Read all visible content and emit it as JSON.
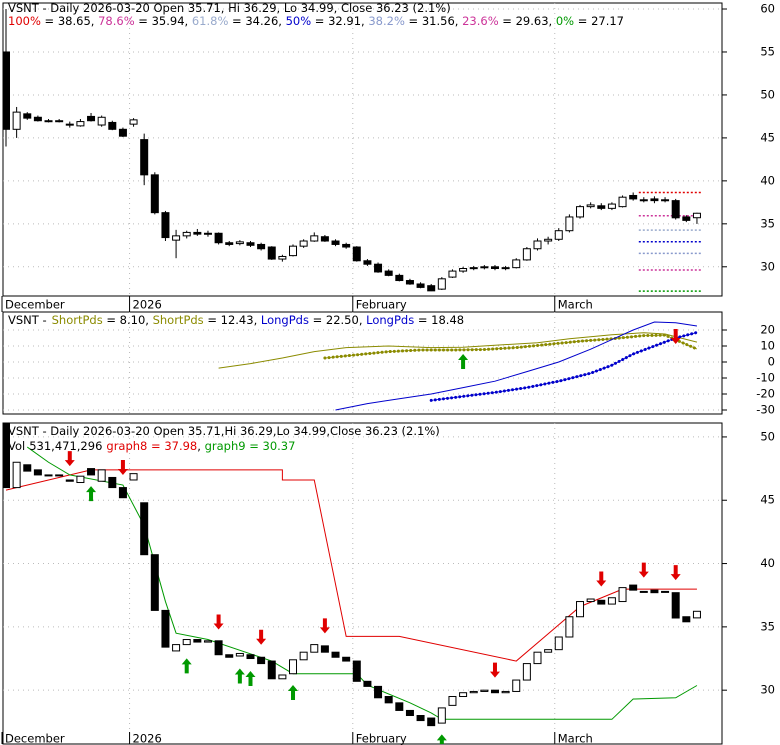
{
  "chart_data": [
    {
      "type": "candlestick",
      "title": "VSNT - Daily 2026-03-20 Open 35.71, Hi 36.29, Lo 34.99, Close 36.23 (2.1%)",
      "open": [
        55,
        46,
        47.8,
        47.4,
        47,
        47,
        46.6,
        46.4,
        47.5,
        46.5,
        46.8,
        46,
        46.6,
        44.8,
        40.7,
        36.3,
        33.1,
        33.6,
        34,
        33.8,
        33.9,
        32.8,
        32.7,
        32.8,
        32.6,
        32.3,
        30.9,
        31.3,
        32.4,
        33,
        33.5,
        33,
        32.6,
        32.3,
        30.7,
        30.3,
        29.5,
        29,
        28.4,
        28,
        27.8,
        27.4,
        28.8,
        29.5,
        29.8,
        29.9,
        30,
        29.8,
        29.9,
        30.8,
        32.1,
        33,
        33.2,
        34.2,
        35.8,
        37,
        37.1,
        36.8,
        37,
        38.3,
        37.8,
        37.9,
        37.8,
        37.7,
        35.8,
        35.71
      ],
      "high": [
        60,
        48.6,
        48,
        47.6,
        47.2,
        47.2,
        46.9,
        47.2,
        47.9,
        47.6,
        47,
        46.2,
        47.3,
        45.5,
        41,
        36.5,
        34.3,
        34.2,
        34.4,
        34.2,
        34,
        33,
        33.1,
        33,
        32.8,
        32.4,
        31.4,
        32.6,
        33.2,
        34,
        33.7,
        33.2,
        32.8,
        32.4,
        30.9,
        30.5,
        29.7,
        29.2,
        28.6,
        28.2,
        28,
        28.8,
        29.7,
        30,
        30.1,
        30.2,
        30.2,
        30.1,
        31,
        32.3,
        33.3,
        33.5,
        34.5,
        36.1,
        37.2,
        37.5,
        37.4,
        37.5,
        38.3,
        38.65,
        38.1,
        38.2,
        38.1,
        37.9,
        36,
        36.29
      ],
      "low": [
        44,
        45,
        47.1,
        46.9,
        46.8,
        46.8,
        46.2,
        46.3,
        46.9,
        46.3,
        45.9,
        45.1,
        46.3,
        39.5,
        36.1,
        33,
        31,
        33.3,
        33.6,
        33.5,
        32.6,
        32.4,
        32.5,
        32.3,
        31.9,
        30.8,
        30.6,
        31.2,
        32.2,
        32.9,
        32.9,
        32.4,
        32.1,
        30.6,
        30.1,
        29.3,
        28.9,
        28.3,
        27.9,
        27.5,
        27.17,
        27.3,
        28.7,
        29.3,
        29.6,
        29.7,
        29.6,
        29.6,
        29.8,
        30.7,
        31.9,
        32.6,
        33,
        34,
        35.6,
        36.8,
        36.6,
        36.6,
        36.9,
        37.7,
        37.5,
        37.4,
        37.5,
        35.5,
        35.2,
        34.99
      ],
      "close": [
        46,
        48,
        47.3,
        47,
        47,
        47,
        46.5,
        46.9,
        47,
        47.4,
        46,
        45.2,
        47.1,
        40.7,
        36.3,
        33.4,
        33.6,
        34,
        33.8,
        33.9,
        32.8,
        32.6,
        32.9,
        32.5,
        32.1,
        30.9,
        31.2,
        32.4,
        33,
        33.6,
        33,
        32.6,
        32.3,
        30.7,
        30.3,
        29.4,
        29,
        28.4,
        28,
        27.6,
        27.2,
        28.6,
        29.5,
        29.8,
        29.9,
        30,
        29.8,
        29.9,
        30.8,
        32.1,
        33,
        33.2,
        34.2,
        35.8,
        37,
        37.2,
        36.8,
        37.3,
        38.1,
        37.9,
        37.8,
        37.7,
        37.8,
        35.7,
        35.4,
        36.23
      ],
      "xticks": [
        {
          "value": 0,
          "label": "December"
        },
        {
          "value": 12,
          "label": "2026"
        },
        {
          "value": 33,
          "label": "February"
        },
        {
          "value": 52,
          "label": "March"
        }
      ],
      "ylim": [
        26.6,
        60.7
      ],
      "yticks": [
        30,
        35,
        40,
        45,
        50,
        55,
        60
      ],
      "grid": true,
      "legend_separator": " = ",
      "legend_item_separator": ", ",
      "fib_levels": [
        {
          "name": "100%",
          "value": 38.65,
          "color": "#e00000"
        },
        {
          "name": "78.6%",
          "value": 35.94,
          "color": "#cc3399"
        },
        {
          "name": "61.8%",
          "value": 34.26,
          "color": "#99aacc"
        },
        {
          "name": "50%",
          "value": 32.91,
          "color": "#0000cc"
        },
        {
          "name": "38.2%",
          "value": 31.56,
          "color": "#8899cc"
        },
        {
          "name": "23.6%",
          "value": 29.63,
          "color": "#cc3399"
        },
        {
          "name": "0%",
          "value": 27.17,
          "color": "#009900"
        }
      ]
    },
    {
      "type": "line",
      "title": "VSNT -",
      "ylim": [
        -32.5,
        31.25
      ],
      "yticks": [
        20,
        10,
        0,
        -10,
        -20,
        -30
      ],
      "legend_separator": " = ",
      "legend_item_separator": ", ",
      "series": [
        {
          "name": "ShortPds",
          "color": "#8b8b00",
          "style": "dotted",
          "legend_label": "8.10",
          "x": [
            30,
            33,
            36,
            39,
            42,
            45,
            48,
            51,
            54,
            57,
            60,
            62,
            65
          ],
          "values": [
            2.5,
            4.5,
            6.5,
            7.5,
            7.5,
            7.8,
            9,
            11,
            13,
            14.5,
            16.5,
            16.8,
            8.1
          ]
        },
        {
          "name": "ShortPds",
          "color": "#8b8b00",
          "style": "solid",
          "legend_label": "12.43",
          "x": [
            20,
            23,
            26,
            29,
            32,
            36,
            40,
            43,
            46,
            50,
            53,
            57,
            60,
            62,
            65
          ],
          "values": [
            -3.8,
            -1,
            2.5,
            6.5,
            9,
            10,
            9,
            9.2,
            10.5,
            12,
            14.5,
            17,
            18.3,
            17.5,
            12.43
          ]
        },
        {
          "name": "LongPds",
          "color": "#0000cc",
          "style": "solid",
          "legend_label": "22.50",
          "x": [
            31,
            34,
            37,
            40,
            43,
            46,
            49,
            52,
            55,
            57,
            59,
            61,
            63,
            65
          ],
          "values": [
            -30,
            -26,
            -23,
            -20,
            -16,
            -12,
            -6,
            0,
            8,
            14,
            20,
            25,
            24.5,
            22.5
          ]
        },
        {
          "name": "LongPds",
          "color": "#0000cc",
          "style": "dotted",
          "legend_label": "18.48",
          "x": [
            40,
            43,
            46,
            49,
            52,
            55,
            57,
            59,
            61,
            63,
            65
          ],
          "values": [
            -24,
            -21.5,
            -19,
            -16,
            -12,
            -7,
            -2,
            5,
            10,
            15,
            18.48
          ]
        }
      ],
      "buy_signals": [
        43
      ],
      "sell_signals": [
        63
      ]
    },
    {
      "type": "candlestick",
      "title": "VSNT - Daily 2026-03-20 Open 35.71,Hi 36.29,Lo 34.99,Close 36.23 (2.1%)",
      "volume": {
        "name": "Vol",
        "value": 531471296,
        "label": "531,471,296"
      },
      "ylim": [
        25.75,
        51.1
      ],
      "yticks": [
        30,
        35,
        40,
        45,
        50
      ],
      "legend_separator": " = ",
      "legend_item_separator": ", ",
      "series": [
        {
          "name": "graph8",
          "color": "#e00000",
          "x": [
            0,
            8,
            26,
            26,
            29,
            32,
            37,
            48,
            54,
            58,
            65
          ],
          "values": [
            45.8,
            47.4,
            47.4,
            46.6,
            46.6,
            34.25,
            34.25,
            32.3,
            36.6,
            37.98,
            37.98
          ]
        },
        {
          "name": "graph9",
          "color": "#009900",
          "x": [
            2,
            4,
            6,
            11,
            13,
            15,
            16,
            19,
            25,
            27,
            33,
            34,
            38,
            40,
            41,
            57,
            59,
            63,
            65
          ],
          "values": [
            49.2,
            48,
            47,
            46.2,
            43,
            37,
            34.5,
            34,
            32.3,
            31.3,
            31.3,
            30.4,
            29,
            28.2,
            27.7,
            27.7,
            29.3,
            29.4,
            30.37
          ]
        }
      ],
      "buy_signals": [
        8,
        17,
        22,
        23,
        27,
        41
      ],
      "sell_signals": [
        6,
        11,
        20,
        24,
        30,
        46,
        56,
        60,
        63
      ]
    }
  ]
}
